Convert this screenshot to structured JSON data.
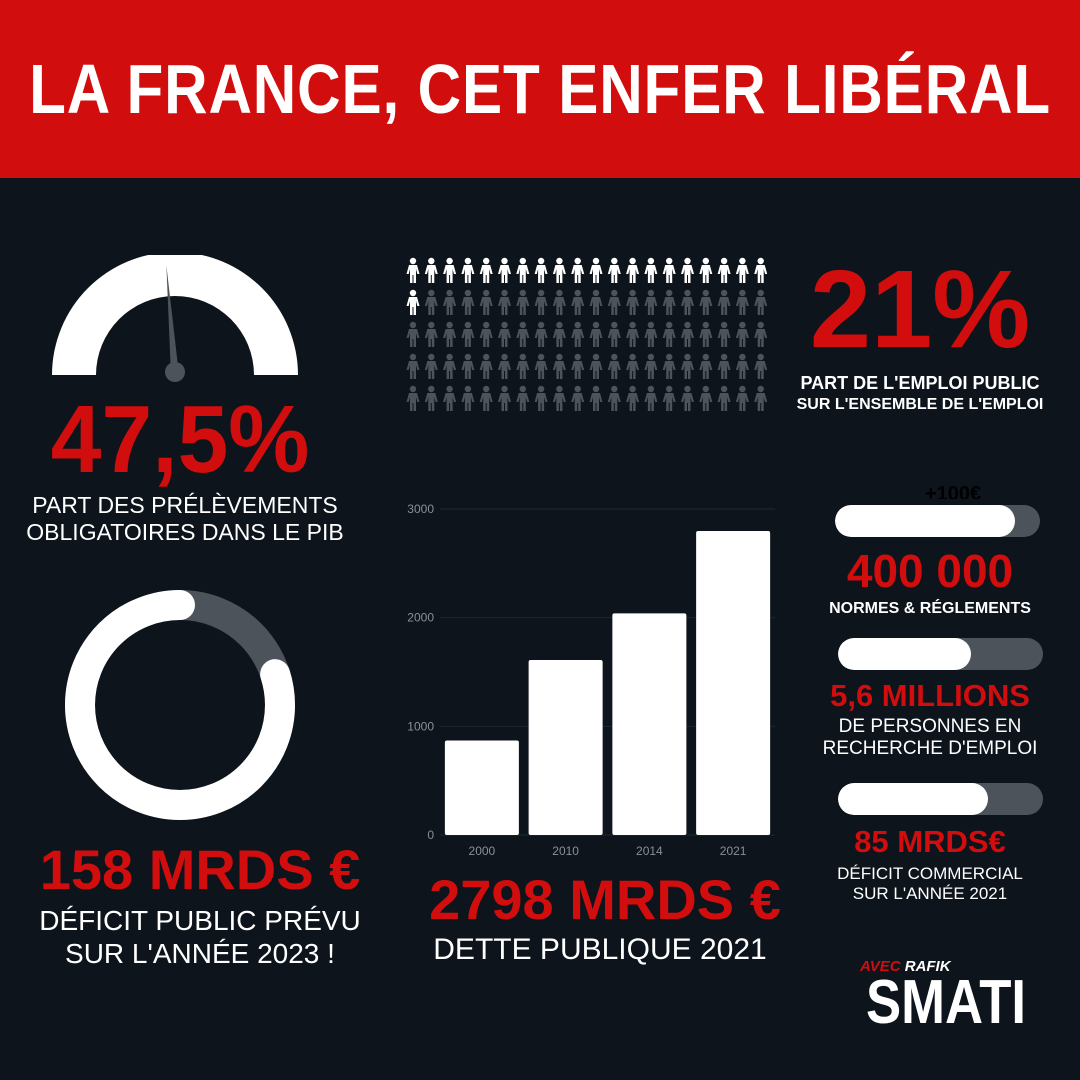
{
  "title": "LA FRANCE, CET ENFER LIBÉRAL",
  "colors": {
    "red": "#d10d0d",
    "background": "#0d141b",
    "gray": "#4d535a",
    "white": "#ffffff"
  },
  "gauge": {
    "value_text": "47,5%",
    "value": 47.5,
    "caption_line1": "PART DES PRÉLÈVEMENTS",
    "caption_line2": "OBLIGATOIRES DANS LE PIB"
  },
  "people": {
    "value_text": "21%",
    "value": 21,
    "total": 100,
    "caption_line1": "PART DE L'EMPLOI PUBLIC",
    "caption_line2": "SUR L'ENSEMBLE DE L'EMPLOI",
    "icon": "person-icon"
  },
  "deficit": {
    "value_text": "158 MRDS €",
    "caption_line1": "DÉFICIT PUBLIC PRÉVU",
    "caption_line2": "SUR L'ANNÉE 2023 !",
    "ring_fraction": 0.2
  },
  "debt": {
    "value_text": "2798 MRDS €",
    "caption": "DETTE PUBLIQUE 2021"
  },
  "stats": [
    {
      "value_text": "400 000",
      "caption_line1": "NORMES & RÉGLEMENTS",
      "caption_line2": "",
      "progress": 0.88,
      "tag": "+100€"
    },
    {
      "value_text": "5,6 MILLIONS",
      "caption_line1": "DE PERSONNES EN",
      "caption_line2": "RECHERCHE D'EMPLOI",
      "progress": 0.65,
      "tag": ""
    },
    {
      "value_text": "85 MRDS€",
      "caption_line1": "DÉFICIT COMMERCIAL",
      "caption_line2": "SUR L'ANNÉE 2021",
      "progress": 0.73,
      "tag": ""
    }
  ],
  "logo": {
    "line1a": "AVEC",
    "line1b": "RAFIK",
    "line2": "SMATI"
  },
  "chart_data": {
    "type": "bar",
    "categories": [
      "2000",
      "2010",
      "2014",
      "2021"
    ],
    "values": [
      870,
      1610,
      2040,
      2798
    ],
    "ylim": [
      0,
      3000
    ],
    "yticks": [
      0,
      1000,
      2000,
      3000
    ],
    "title": "",
    "xlabel": "",
    "ylabel": "",
    "grid": true
  }
}
